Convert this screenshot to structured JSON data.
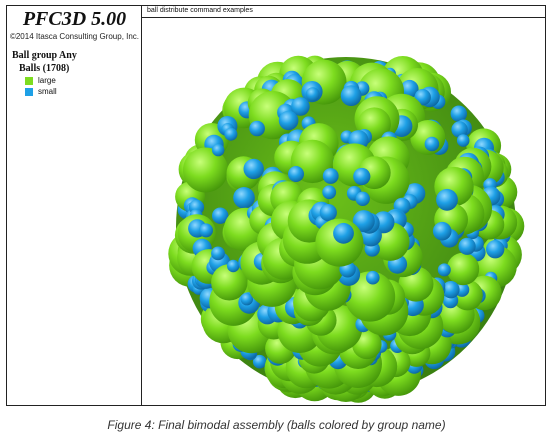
{
  "app": {
    "title": "PFC3D 5.00",
    "copyright": "©2014 Itasca Consulting Group, Inc."
  },
  "legend": {
    "title": "Ball group Any",
    "subtitle": "Balls (1708)",
    "items": [
      {
        "label": "large",
        "color": "#7ddc1f"
      },
      {
        "label": "small",
        "color": "#1ea0e6"
      }
    ]
  },
  "view": {
    "title": "ball distribute command examples"
  },
  "caption": "Figure 4: Final bimodal assembly (balls colored by group name)"
}
